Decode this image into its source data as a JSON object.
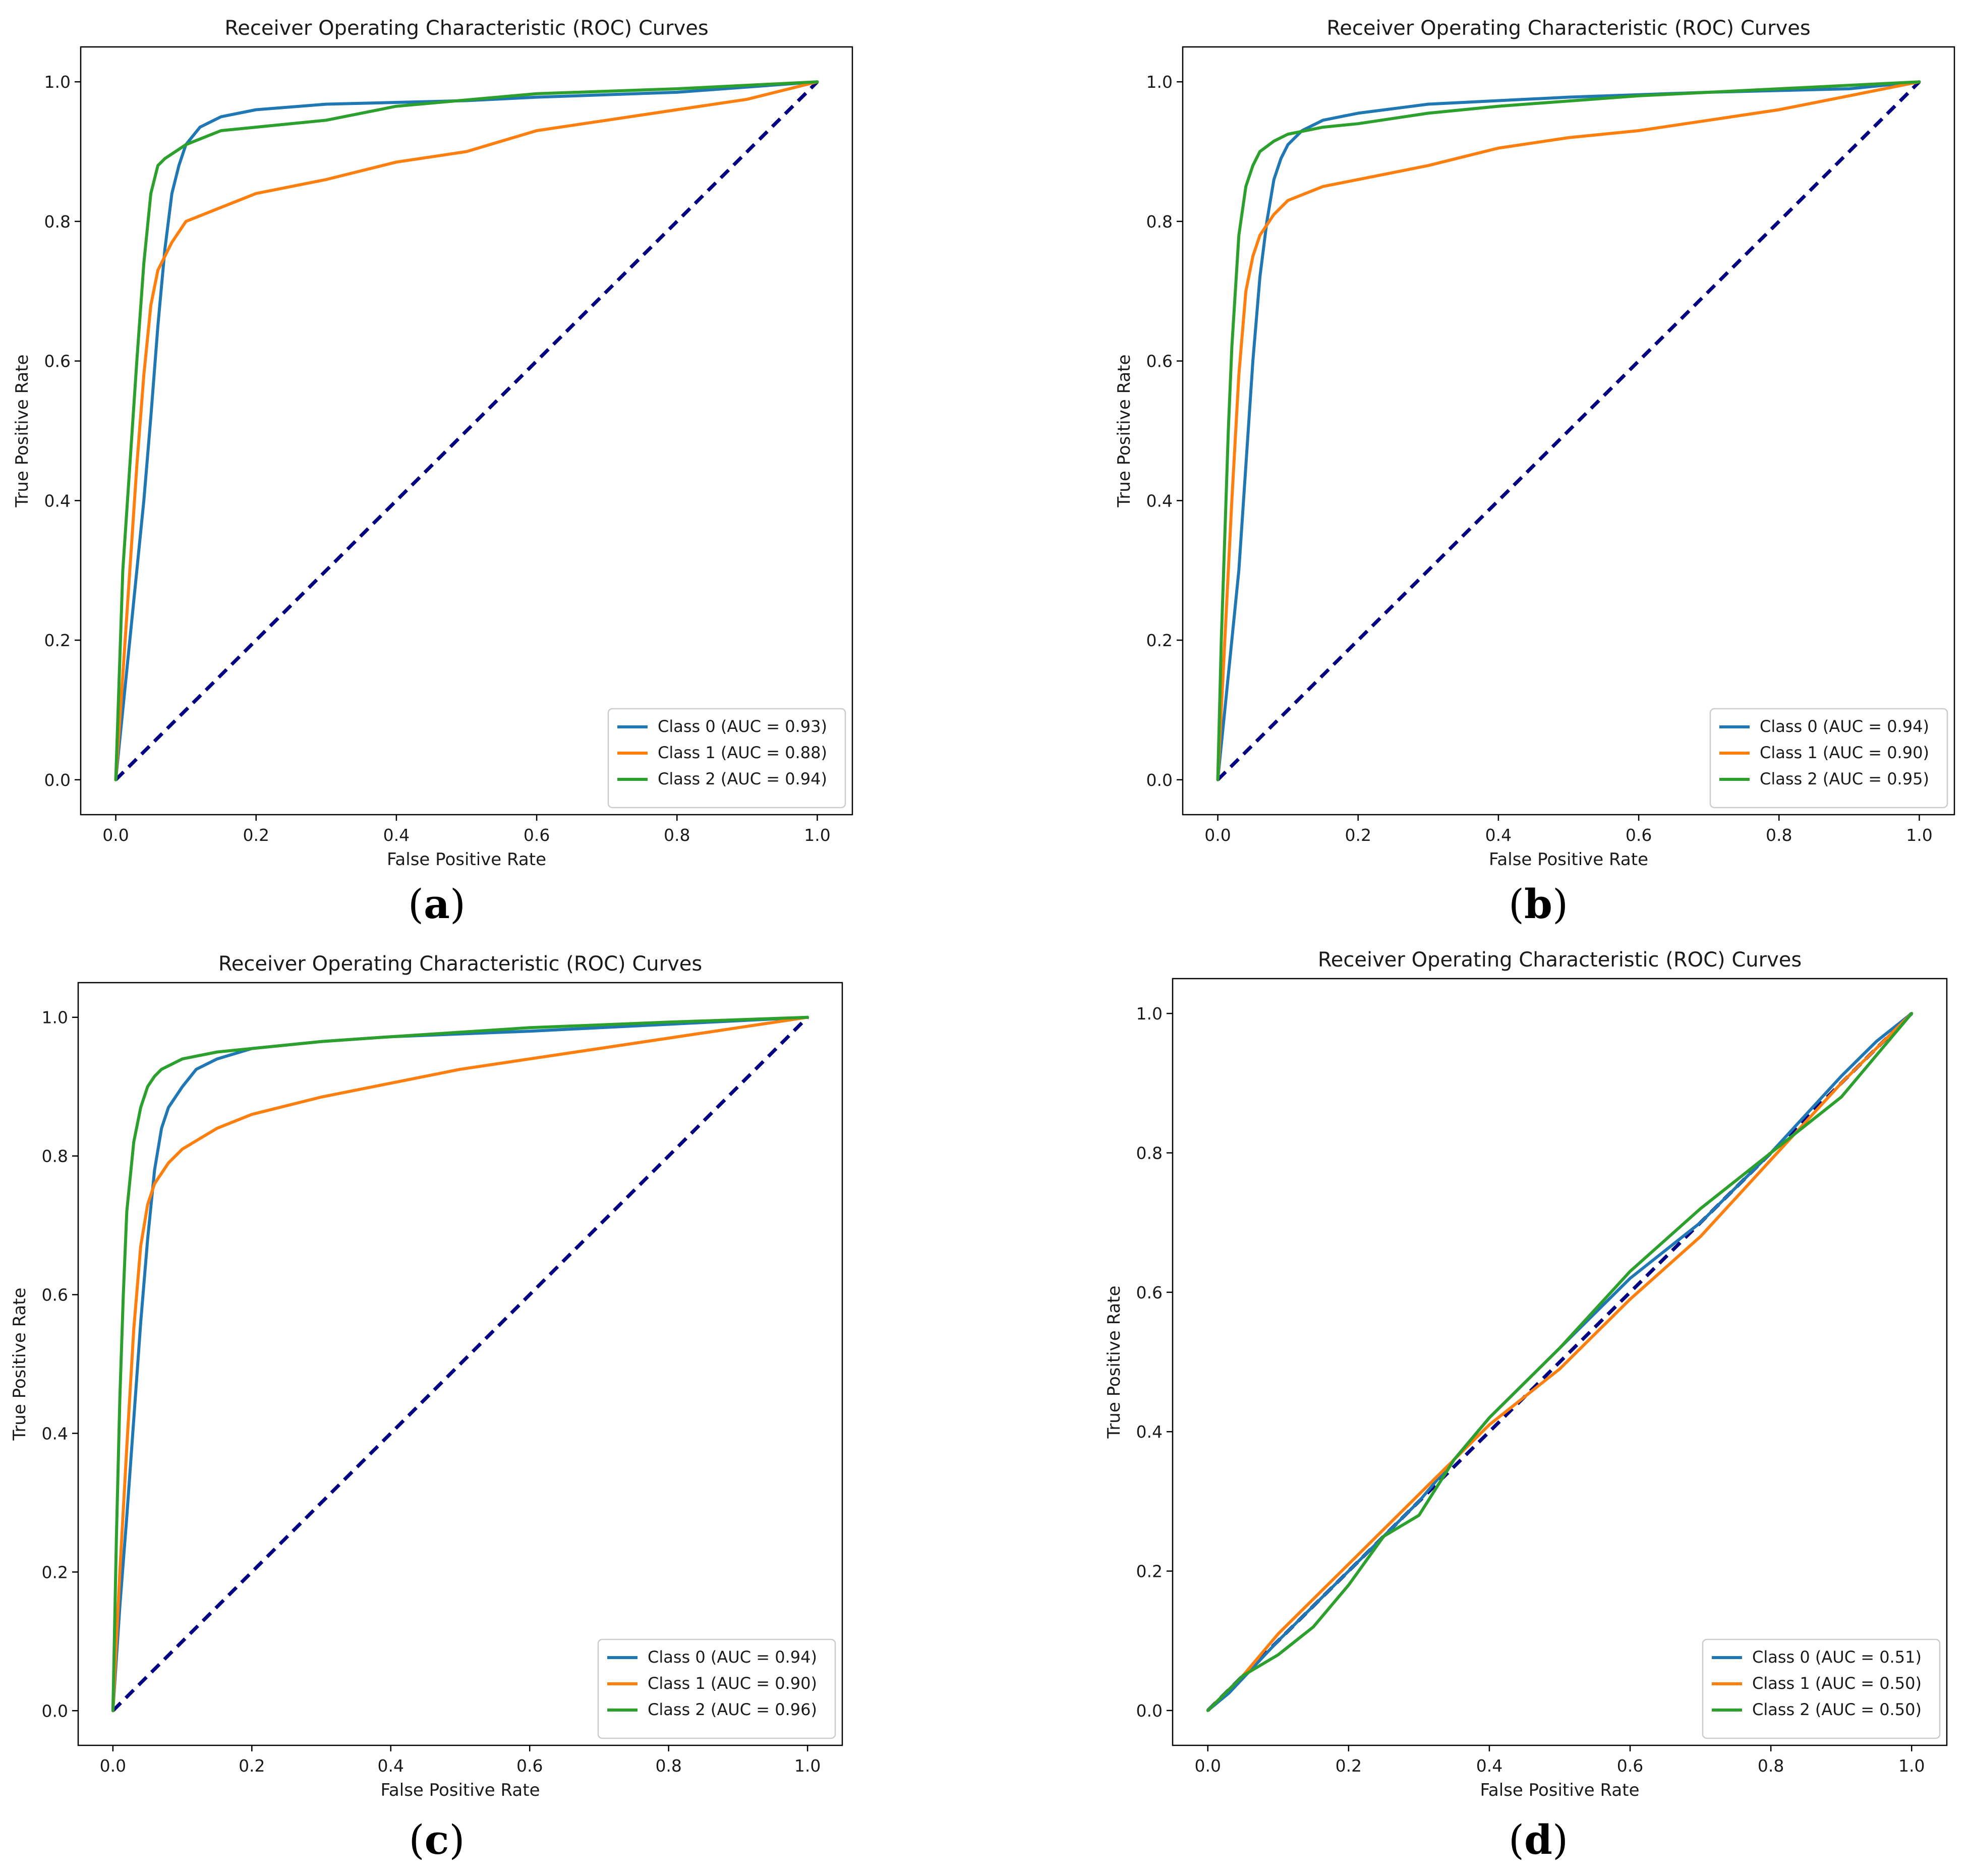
{
  "figure": {
    "captions": [
      "a",
      "b",
      "c",
      "d"
    ]
  },
  "colors": {
    "class0": "#1f77b4",
    "class1": "#ff7f0e",
    "class2": "#2ca02c",
    "diagonal": "#000080",
    "axis": "#000000"
  },
  "chart_data": [
    {
      "type": "line",
      "panel": "a",
      "title": "Receiver Operating Characteristic (ROC) Curves",
      "xlabel": "False Positive Rate",
      "ylabel": "True Positive Rate",
      "xlim": [
        -0.05,
        1.05
      ],
      "ylim": [
        -0.05,
        1.05
      ],
      "xticks": [
        0.0,
        0.2,
        0.4,
        0.6,
        0.8,
        1.0
      ],
      "yticks": [
        0.0,
        0.2,
        0.4,
        0.6,
        0.8,
        1.0
      ],
      "tick_labels": [
        "0.0",
        "0.2",
        "0.4",
        "0.6",
        "0.8",
        "1.0"
      ],
      "legend": "lower-right",
      "series": [
        {
          "name": "Class 0 (AUC = 0.93)",
          "color_key": "class0",
          "x": [
            0,
            0.01,
            0.02,
            0.03,
            0.04,
            0.05,
            0.06,
            0.07,
            0.08,
            0.09,
            0.1,
            0.12,
            0.15,
            0.2,
            0.3,
            0.5,
            0.6,
            0.8,
            1.0
          ],
          "y": [
            0,
            0.1,
            0.2,
            0.3,
            0.4,
            0.52,
            0.65,
            0.76,
            0.84,
            0.88,
            0.91,
            0.935,
            0.95,
            0.96,
            0.968,
            0.973,
            0.978,
            0.985,
            1.0
          ]
        },
        {
          "name": "Class 1 (AUC = 0.88)",
          "color_key": "class1",
          "x": [
            0,
            0.01,
            0.02,
            0.03,
            0.04,
            0.05,
            0.06,
            0.08,
            0.1,
            0.15,
            0.2,
            0.3,
            0.4,
            0.5,
            0.6,
            0.7,
            0.8,
            0.9,
            1.0
          ],
          "y": [
            0,
            0.15,
            0.3,
            0.45,
            0.58,
            0.68,
            0.73,
            0.77,
            0.8,
            0.82,
            0.84,
            0.86,
            0.885,
            0.9,
            0.93,
            0.945,
            0.96,
            0.975,
            1.0
          ]
        },
        {
          "name": "Class 2 (AUC = 0.94)",
          "color_key": "class2",
          "x": [
            0,
            0.005,
            0.01,
            0.02,
            0.03,
            0.04,
            0.05,
            0.06,
            0.07,
            0.1,
            0.15,
            0.2,
            0.3,
            0.4,
            0.6,
            0.8,
            1.0
          ],
          "y": [
            0,
            0.15,
            0.3,
            0.45,
            0.6,
            0.74,
            0.84,
            0.88,
            0.89,
            0.91,
            0.93,
            0.935,
            0.945,
            0.965,
            0.983,
            0.99,
            1.0
          ]
        },
        {
          "name": "",
          "color_key": "diagonal",
          "dashed": true,
          "x": [
            0,
            1
          ],
          "y": [
            0,
            1
          ]
        }
      ]
    },
    {
      "type": "line",
      "panel": "b",
      "title": "Receiver Operating Characteristic (ROC) Curves",
      "xlabel": "False Positive Rate",
      "ylabel": "True Positive Rate",
      "xlim": [
        -0.05,
        1.05
      ],
      "ylim": [
        -0.05,
        1.05
      ],
      "xticks": [
        0.0,
        0.2,
        0.4,
        0.6,
        0.8,
        1.0
      ],
      "yticks": [
        0.0,
        0.2,
        0.4,
        0.6,
        0.8,
        1.0
      ],
      "tick_labels": [
        "0.0",
        "0.2",
        "0.4",
        "0.6",
        "0.8",
        "1.0"
      ],
      "legend": "lower-right",
      "series": [
        {
          "name": "Class 0 (AUC = 0.94)",
          "color_key": "class0",
          "x": [
            0,
            0.01,
            0.02,
            0.03,
            0.04,
            0.05,
            0.06,
            0.07,
            0.08,
            0.09,
            0.1,
            0.12,
            0.15,
            0.2,
            0.3,
            0.5,
            0.7,
            0.9,
            1.0
          ],
          "y": [
            0,
            0.1,
            0.2,
            0.3,
            0.45,
            0.6,
            0.72,
            0.8,
            0.86,
            0.89,
            0.91,
            0.93,
            0.945,
            0.955,
            0.968,
            0.978,
            0.985,
            0.99,
            1.0
          ]
        },
        {
          "name": "Class 1 (AUC = 0.90)",
          "color_key": "class1",
          "x": [
            0,
            0.01,
            0.02,
            0.03,
            0.04,
            0.05,
            0.06,
            0.08,
            0.1,
            0.15,
            0.2,
            0.3,
            0.4,
            0.5,
            0.6,
            0.7,
            0.8,
            0.9,
            1.0
          ],
          "y": [
            0,
            0.2,
            0.4,
            0.58,
            0.7,
            0.75,
            0.78,
            0.81,
            0.83,
            0.85,
            0.86,
            0.88,
            0.905,
            0.92,
            0.93,
            0.945,
            0.96,
            0.98,
            1.0
          ]
        },
        {
          "name": "Class 2 (AUC = 0.95)",
          "color_key": "class2",
          "x": [
            0,
            0.005,
            0.01,
            0.015,
            0.02,
            0.03,
            0.04,
            0.05,
            0.06,
            0.08,
            0.1,
            0.15,
            0.2,
            0.3,
            0.4,
            0.6,
            0.8,
            1.0
          ],
          "y": [
            0,
            0.2,
            0.35,
            0.5,
            0.62,
            0.78,
            0.85,
            0.88,
            0.9,
            0.915,
            0.925,
            0.935,
            0.94,
            0.955,
            0.965,
            0.98,
            0.99,
            1.0
          ]
        },
        {
          "name": "",
          "color_key": "diagonal",
          "dashed": true,
          "x": [
            0,
            1
          ],
          "y": [
            0,
            1
          ]
        }
      ]
    },
    {
      "type": "line",
      "panel": "c",
      "title": "Receiver Operating Characteristic (ROC) Curves",
      "xlabel": "False Positive Rate",
      "ylabel": "True Positive Rate",
      "xlim": [
        -0.05,
        1.05
      ],
      "ylim": [
        -0.05,
        1.05
      ],
      "xticks": [
        0.0,
        0.2,
        0.4,
        0.6,
        0.8,
        1.0
      ],
      "yticks": [
        0.0,
        0.2,
        0.4,
        0.6,
        0.8,
        1.0
      ],
      "tick_labels": [
        "0.0",
        "0.2",
        "0.4",
        "0.6",
        "0.8",
        "1.0"
      ],
      "legend": "lower-right",
      "series": [
        {
          "name": "Class 0 (AUC = 0.94)",
          "color_key": "class0",
          "x": [
            0,
            0.01,
            0.02,
            0.03,
            0.04,
            0.05,
            0.06,
            0.07,
            0.08,
            0.1,
            0.12,
            0.15,
            0.2,
            0.3,
            0.4,
            0.6,
            0.8,
            1.0
          ],
          "y": [
            0,
            0.15,
            0.28,
            0.42,
            0.56,
            0.68,
            0.78,
            0.84,
            0.87,
            0.9,
            0.925,
            0.94,
            0.955,
            0.965,
            0.972,
            0.98,
            0.99,
            1.0
          ]
        },
        {
          "name": "Class 1 (AUC = 0.90)",
          "color_key": "class1",
          "x": [
            0,
            0.01,
            0.02,
            0.03,
            0.04,
            0.05,
            0.06,
            0.08,
            0.1,
            0.15,
            0.2,
            0.3,
            0.4,
            0.5,
            0.6,
            0.7,
            0.8,
            0.9,
            1.0
          ],
          "y": [
            0,
            0.2,
            0.38,
            0.55,
            0.67,
            0.73,
            0.76,
            0.79,
            0.81,
            0.84,
            0.86,
            0.885,
            0.905,
            0.925,
            0.94,
            0.955,
            0.97,
            0.985,
            1.0
          ]
        },
        {
          "name": "Class 2 (AUC = 0.96)",
          "color_key": "class2",
          "x": [
            0,
            0.005,
            0.01,
            0.015,
            0.02,
            0.03,
            0.04,
            0.05,
            0.06,
            0.07,
            0.1,
            0.15,
            0.2,
            0.3,
            0.4,
            0.6,
            0.8,
            1.0
          ],
          "y": [
            0,
            0.25,
            0.45,
            0.6,
            0.72,
            0.82,
            0.87,
            0.9,
            0.915,
            0.925,
            0.94,
            0.95,
            0.955,
            0.965,
            0.972,
            0.985,
            0.993,
            1.0
          ]
        },
        {
          "name": "",
          "color_key": "diagonal",
          "dashed": true,
          "x": [
            0,
            1
          ],
          "y": [
            0,
            1
          ]
        }
      ]
    },
    {
      "type": "line",
      "panel": "d",
      "title": "Receiver Operating Characteristic (ROC) Curves",
      "xlabel": "False Positive Rate",
      "ylabel": "True Positive Rate",
      "xlim": [
        -0.05,
        1.05
      ],
      "ylim": [
        -0.05,
        1.05
      ],
      "xticks": [
        0.0,
        0.2,
        0.4,
        0.6,
        0.8,
        1.0
      ],
      "yticks": [
        0.0,
        0.2,
        0.4,
        0.6,
        0.8,
        1.0
      ],
      "tick_labels": [
        "0.0",
        "0.2",
        "0.4",
        "0.6",
        "0.8",
        "1.0"
      ],
      "legend": "lower-right",
      "series": [
        {
          "name": "Class 0 (AUC = 0.51)",
          "color_key": "class0",
          "x": [
            0,
            0.03,
            0.1,
            0.2,
            0.3,
            0.4,
            0.5,
            0.6,
            0.7,
            0.8,
            0.9,
            0.95,
            1.0
          ],
          "y": [
            0,
            0.025,
            0.1,
            0.2,
            0.3,
            0.42,
            0.52,
            0.62,
            0.7,
            0.8,
            0.91,
            0.96,
            1.0
          ]
        },
        {
          "name": "Class 1 (AUC = 0.50)",
          "color_key": "class1",
          "x": [
            0,
            0.05,
            0.1,
            0.2,
            0.3,
            0.4,
            0.5,
            0.6,
            0.7,
            0.8,
            0.9,
            1.0
          ],
          "y": [
            0,
            0.05,
            0.11,
            0.21,
            0.31,
            0.41,
            0.49,
            0.59,
            0.68,
            0.79,
            0.9,
            1.0
          ]
        },
        {
          "name": "Class 2 (AUC = 0.50)",
          "color_key": "class2",
          "x": [
            0,
            0.05,
            0.1,
            0.15,
            0.2,
            0.25,
            0.3,
            0.35,
            0.4,
            0.5,
            0.6,
            0.7,
            0.8,
            0.9,
            1.0
          ],
          "y": [
            0,
            0.05,
            0.08,
            0.12,
            0.18,
            0.25,
            0.28,
            0.36,
            0.42,
            0.52,
            0.63,
            0.72,
            0.8,
            0.88,
            1.0
          ]
        },
        {
          "name": "",
          "color_key": "diagonal",
          "dashed": true,
          "x": [
            0,
            1
          ],
          "y": [
            0,
            1
          ]
        }
      ]
    }
  ]
}
